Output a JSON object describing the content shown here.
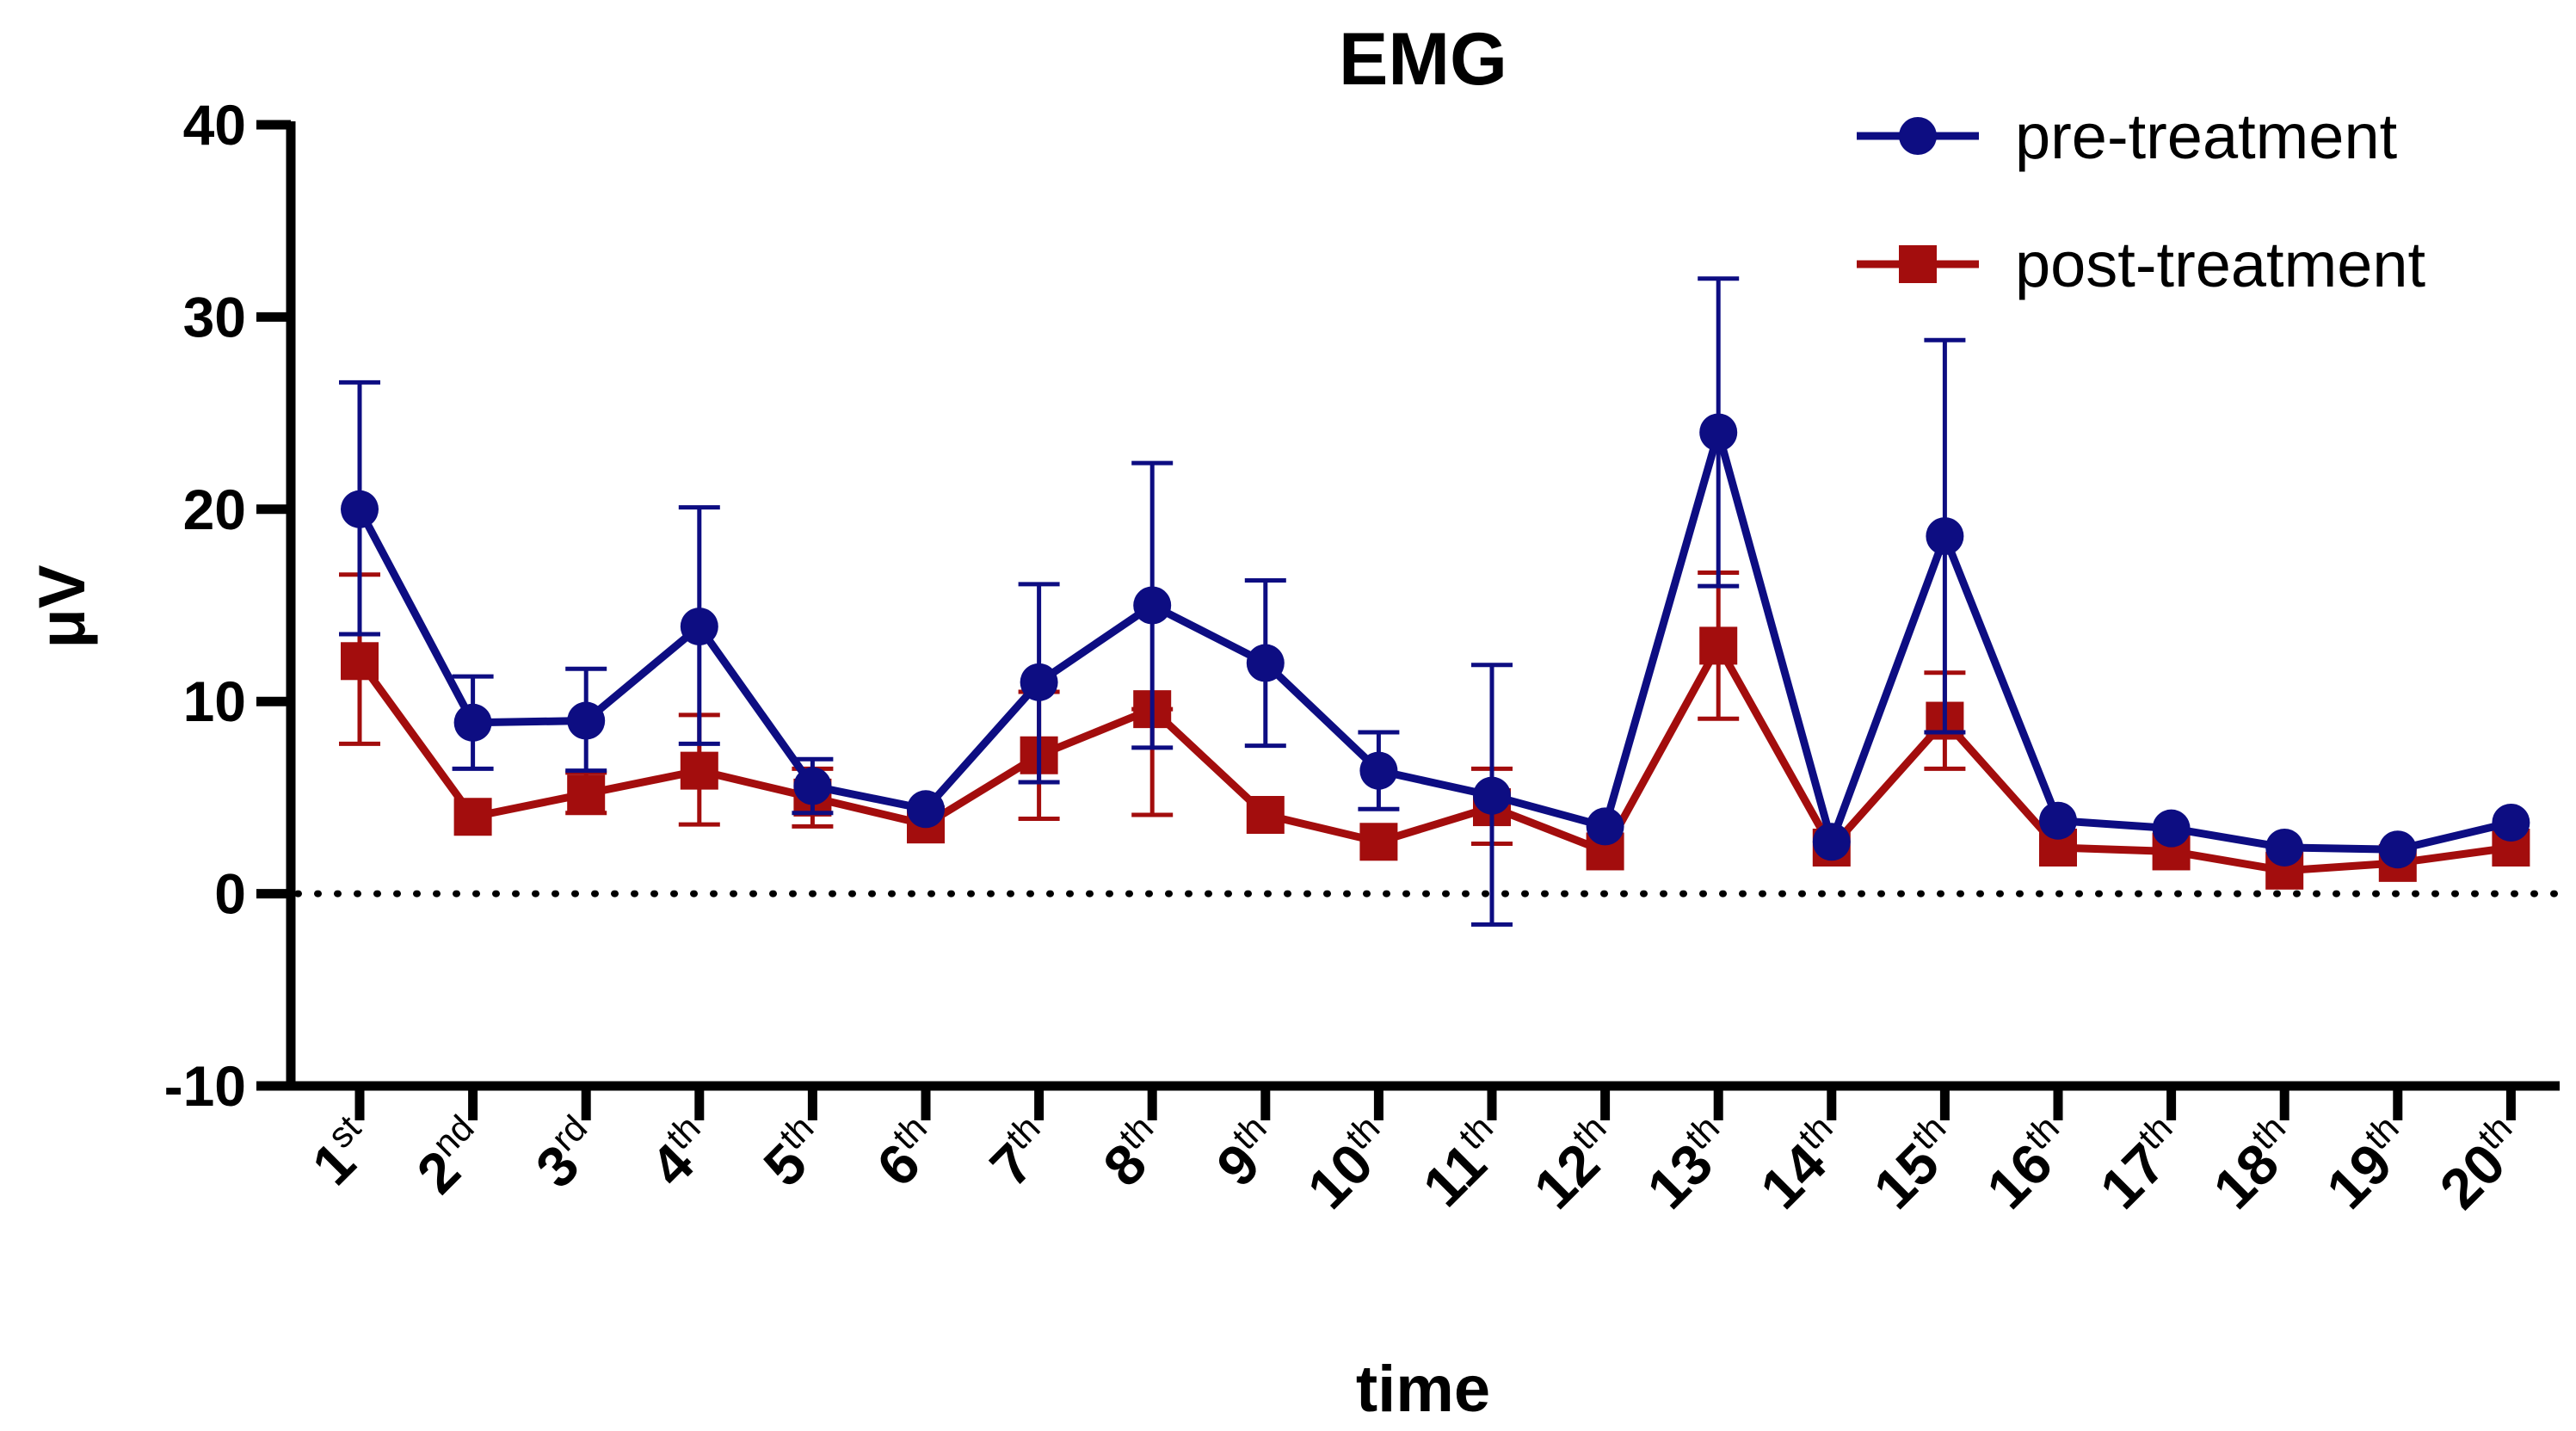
{
  "chart_data": {
    "type": "line",
    "title": "EMG",
    "xlabel": "time",
    "ylabel": "μV",
    "ylim": [
      -10,
      40
    ],
    "yticks": [
      "-10",
      "0",
      "10",
      "20",
      "30",
      "40"
    ],
    "reference_line": {
      "y": 0,
      "style": "dotted"
    },
    "legend_position": "top-right",
    "grid": false,
    "categories": [
      {
        "num": "1",
        "sup": "st"
      },
      {
        "num": "2",
        "sup": "nd"
      },
      {
        "num": "3",
        "sup": "rd"
      },
      {
        "num": "4",
        "sup": "th"
      },
      {
        "num": "5",
        "sup": "th"
      },
      {
        "num": "6",
        "sup": "th"
      },
      {
        "num": "7",
        "sup": "th"
      },
      {
        "num": "8",
        "sup": "th"
      },
      {
        "num": "9",
        "sup": "th"
      },
      {
        "num": "10",
        "sup": "th"
      },
      {
        "num": "11",
        "sup": "th"
      },
      {
        "num": "12",
        "sup": "th"
      },
      {
        "num": "13",
        "sup": "th"
      },
      {
        "num": "14",
        "sup": "th"
      },
      {
        "num": "15",
        "sup": "th"
      },
      {
        "num": "16",
        "sup": "th"
      },
      {
        "num": "17",
        "sup": "th"
      },
      {
        "num": "18",
        "sup": "th"
      },
      {
        "num": "19",
        "sup": "th"
      },
      {
        "num": "20",
        "sup": "th"
      }
    ],
    "series": [
      {
        "name": "pre-treatment",
        "color": "#0d0d82",
        "marker": "circle",
        "values": [
          20.0,
          8.9,
          9.0,
          13.9,
          5.6,
          4.4,
          11.0,
          15.0,
          12.0,
          6.4,
          5.1,
          3.5,
          24.0,
          2.7,
          18.6,
          3.8,
          3.4,
          2.4,
          2.3,
          3.7
        ],
        "error_upper": [
          26.6,
          11.3,
          11.7,
          20.1,
          7.0,
          4.4,
          16.1,
          22.4,
          16.3,
          8.4,
          11.9,
          3.5,
          32.0,
          2.7,
          28.8,
          3.8,
          3.4,
          2.4,
          2.3,
          3.7
        ],
        "error_lower": [
          13.5,
          6.5,
          6.4,
          7.8,
          4.2,
          4.4,
          5.8,
          7.6,
          7.7,
          4.4,
          -1.6,
          3.5,
          16.0,
          2.7,
          8.4,
          3.8,
          3.4,
          2.4,
          2.3,
          3.7
        ]
      },
      {
        "name": "post-treatment",
        "color": "#a30d0d",
        "marker": "square",
        "values": [
          12.1,
          4.0,
          5.2,
          6.4,
          5.0,
          3.6,
          7.2,
          9.6,
          4.1,
          2.7,
          4.5,
          2.2,
          12.9,
          2.4,
          9.0,
          2.4,
          2.2,
          1.2,
          1.6,
          2.4
        ],
        "error_upper": [
          16.6,
          4.0,
          6.3,
          9.3,
          6.5,
          3.6,
          10.5,
          9.6,
          4.1,
          2.7,
          6.5,
          2.2,
          16.7,
          2.4,
          11.5,
          2.4,
          2.2,
          1.2,
          1.6,
          2.4
        ],
        "error_lower": [
          7.8,
          4.0,
          4.2,
          3.6,
          3.5,
          3.6,
          3.9,
          4.1,
          4.1,
          2.7,
          2.6,
          2.2,
          9.1,
          2.4,
          6.5,
          2.4,
          2.2,
          1.2,
          1.6,
          2.4
        ]
      }
    ]
  }
}
